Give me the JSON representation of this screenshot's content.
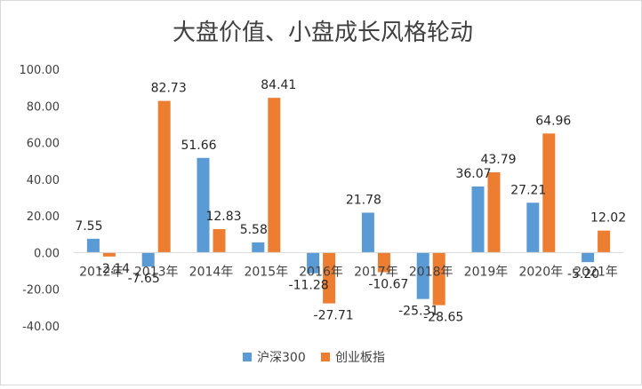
{
  "chart_data": {
    "type": "bar",
    "title": "大盘价值、小盘成长风格轮动",
    "categories": [
      "2012年",
      "2013年",
      "2014年",
      "2015年",
      "2016年",
      "2017年",
      "2018年",
      "2019年",
      "2020年",
      "2021年"
    ],
    "series": [
      {
        "name": "沪深300",
        "color": "#5b9bd5",
        "values": [
          7.55,
          -7.65,
          51.66,
          5.58,
          -11.28,
          21.78,
          -25.31,
          36.07,
          27.21,
          -5.2
        ],
        "labels": [
          "7.55",
          "-7.65",
          "51.66",
          "5.58",
          "-11.28",
          "21.78",
          "-25.31",
          "36.07",
          "27.21",
          "-5.20"
        ]
      },
      {
        "name": "创业板指",
        "color": "#ed7d31",
        "values": [
          -2.14,
          82.73,
          12.83,
          84.41,
          -27.71,
          -10.67,
          -28.65,
          43.79,
          64.96,
          12.02
        ],
        "labels": [
          "-2.14",
          "82.73",
          "12.83",
          "84.41",
          "-27.71",
          "-10.67",
          "-28.65",
          "43.79",
          "64.96",
          "12.02"
        ]
      }
    ],
    "yticks": [
      "100.00",
      "80.00",
      "60.00",
      "40.00",
      "20.00",
      "0.00",
      "-20.00",
      "-40.00"
    ],
    "ylim": [
      -40,
      100
    ],
    "grid": false,
    "legend": "bottom-center"
  }
}
